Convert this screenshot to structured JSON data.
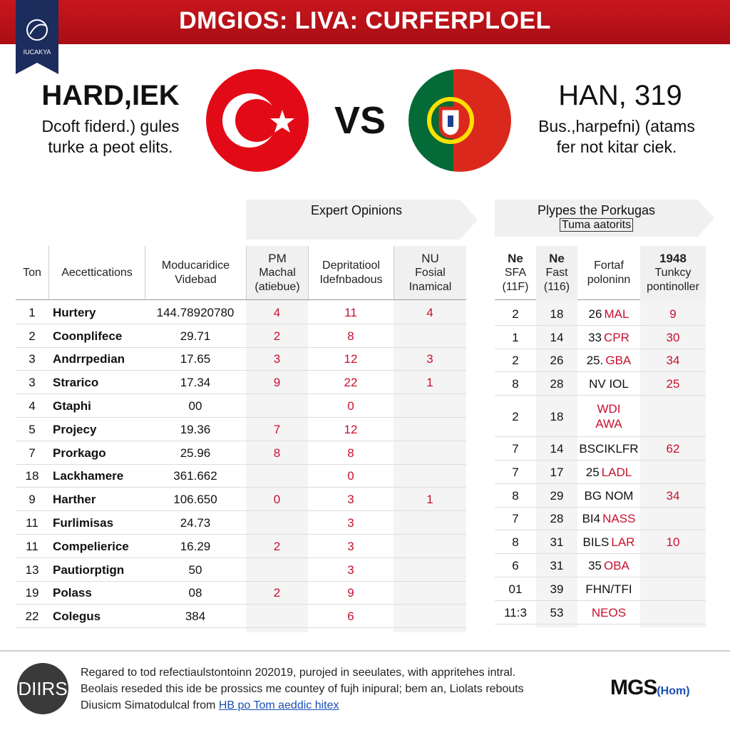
{
  "header": {
    "title": "DMGIOS: LIVA: CURFERPLOEL",
    "badge": "IUCAKYA"
  },
  "left_team": {
    "name": "HARD,IEK",
    "lines": [
      "Dcoft fiderd.) gules",
      "turke a peot elits."
    ]
  },
  "vs": "VS",
  "right_team": {
    "name": "HAN, 319",
    "lines": [
      "Bus.,harpefni) (atams",
      "fer not kitar ciek."
    ]
  },
  "table1": {
    "banner": "Expert Opinions",
    "columns": [
      [
        "Ton"
      ],
      [
        "Aecettications"
      ],
      [
        "Moducaridice",
        "Videbad"
      ],
      [
        "PM",
        "Machal",
        "(atiebue)"
      ],
      [
        "Depritatiool",
        "Idefnbadous"
      ],
      [
        "NU",
        "Fosial",
        "Inamical"
      ]
    ],
    "rows": [
      [
        "1",
        "Hurtery",
        "144.78920780",
        "4",
        "11",
        "4"
      ],
      [
        "2",
        "Coonplifece",
        "29.71",
        "2",
        "8",
        null
      ],
      [
        "3",
        "Andrrpedian",
        "17.65",
        "3",
        "12",
        "3"
      ],
      [
        "3",
        "Strarico",
        "17.34",
        "9",
        "22",
        "1"
      ],
      [
        "4",
        "Gtaphi",
        "00",
        null,
        "0",
        null
      ],
      [
        "5",
        "Projecy",
        "19.36",
        "7",
        "12",
        null
      ],
      [
        "7",
        "Prorkago",
        "25.96",
        "8",
        "8",
        null
      ],
      [
        "18",
        "Lackhamere",
        "361.662",
        null,
        "0",
        null
      ],
      [
        "9",
        "Harther",
        "106.650",
        "0",
        "3",
        "1"
      ],
      [
        "11",
        "Furlimisas",
        "24.73",
        null,
        "3",
        null
      ],
      [
        "11",
        "Compelierice",
        "16.29",
        "2",
        "3",
        null
      ],
      [
        "13",
        "Pautiorptign",
        "50",
        null,
        "3",
        null
      ],
      [
        "19",
        "Polass",
        "08",
        "2",
        "9",
        null
      ],
      [
        "22",
        "Colegus",
        "384",
        null,
        "6",
        null
      ]
    ]
  },
  "table2": {
    "banner": "Plypes the Porkugas",
    "subbanner": "Tuma aatorits",
    "columns": [
      [
        "Ne",
        "SFA",
        "(11F)"
      ],
      [
        "Ne",
        "Fast",
        "(116)"
      ],
      [
        "Fortaf",
        "poloninn"
      ],
      [
        "1948",
        "Tunkcy",
        "pontinoller"
      ]
    ],
    "rows": [
      [
        "2",
        "18",
        [
          "26",
          "MAL"
        ],
        "9"
      ],
      [
        "1",
        "14",
        [
          "33",
          "CPR"
        ],
        "30"
      ],
      [
        "2",
        "26",
        [
          "25.",
          "GBA"
        ],
        "34"
      ],
      [
        "8",
        "28",
        [
          "NV IOL"
        ],
        "25"
      ],
      [
        "2",
        "18",
        [
          null,
          "WDI",
          "AWA"
        ],
        null
      ],
      [
        "7",
        "14",
        [
          "BSCIKLFR"
        ],
        "62"
      ],
      [
        "7",
        "17",
        [
          "25",
          "LADL"
        ],
        null
      ],
      [
        "8",
        "29",
        [
          "BG NOM"
        ],
        "34"
      ],
      [
        "7",
        "28",
        [
          "BI4",
          "NASS"
        ],
        null
      ],
      [
        "8",
        "31",
        [
          "BILS",
          "LAR"
        ],
        "10"
      ],
      [
        "6",
        "31",
        [
          "35",
          "OBA"
        ],
        null
      ],
      [
        "01",
        "39",
        [
          "FHN/TFI"
        ],
        null
      ],
      [
        "11:3",
        "53",
        [
          null,
          "NEOS"
        ],
        null
      ]
    ]
  },
  "footer": {
    "logo": "DIIRS",
    "lines": [
      "Regared to tod refectiaulstontoinn 202019, purojed in seeulates, with appritehes intral.",
      "Beolais reseded this ide be prossics me countey of fujh inipural; bem an, Liolats rebouts",
      "Diusicm Simatodulcal from "
    ],
    "link": "HB po Tom aeddic hitex",
    "brand": "MGS",
    "brand_suffix": "(Hom)"
  }
}
